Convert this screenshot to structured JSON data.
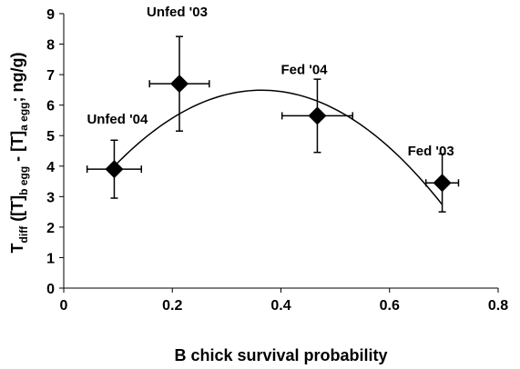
{
  "chart_data": {
    "type": "scatter",
    "xlabel": "B chick survival probability",
    "ylabel": {
      "parts": [
        {
          "text": "T",
          "sub": false
        },
        {
          "text": "diff",
          "sub": true
        },
        {
          "text": " ([T]",
          "sub": false
        },
        {
          "text": "b egg",
          "sub": true
        },
        {
          "text": " - [T]",
          "sub": false
        },
        {
          "text": "a egg",
          "sub": true
        },
        {
          "text": "; ng/g)",
          "sub": false
        }
      ]
    },
    "xlim": [
      0,
      0.8
    ],
    "ylim": [
      0,
      9
    ],
    "x_ticks": [
      {
        "value": 0,
        "label": "0"
      },
      {
        "value": 0.2,
        "label": "0.2"
      },
      {
        "value": 0.4,
        "label": "0.4"
      },
      {
        "value": 0.6,
        "label": "0.6"
      },
      {
        "value": 0.8,
        "label": "0.8"
      }
    ],
    "y_ticks": [
      {
        "value": 0,
        "label": "0"
      },
      {
        "value": 1,
        "label": "1"
      },
      {
        "value": 2,
        "label": "2"
      },
      {
        "value": 3,
        "label": "3"
      },
      {
        "value": 4,
        "label": "4"
      },
      {
        "value": 5,
        "label": "5"
      },
      {
        "value": 6,
        "label": "6"
      },
      {
        "value": 7,
        "label": "7"
      },
      {
        "value": 8,
        "label": "8"
      },
      {
        "value": 9,
        "label": "9"
      }
    ],
    "grid": false,
    "marker": "diamond",
    "marker_color": "#000000",
    "points": [
      {
        "label": "Unfed '04",
        "x": 0.093,
        "y": 3.9,
        "x_err": 0.05,
        "y_err": 0.95
      },
      {
        "label": "Unfed '03",
        "x": 0.213,
        "y": 6.7,
        "x_err": 0.055,
        "y_err": 1.55
      },
      {
        "label": "Fed '04",
        "x": 0.467,
        "y": 5.65,
        "x_err": 0.065,
        "y_err": 1.2
      },
      {
        "label": "Fed '03",
        "x": 0.697,
        "y": 3.45,
        "x_err": 0.03,
        "y_err": 0.95
      }
    ],
    "trendline": {
      "type": "polynomial",
      "order": 2,
      "coefficients": [
        1.99,
        24.7,
        -33.9
      ],
      "x_range": [
        0.093,
        0.697
      ]
    }
  }
}
